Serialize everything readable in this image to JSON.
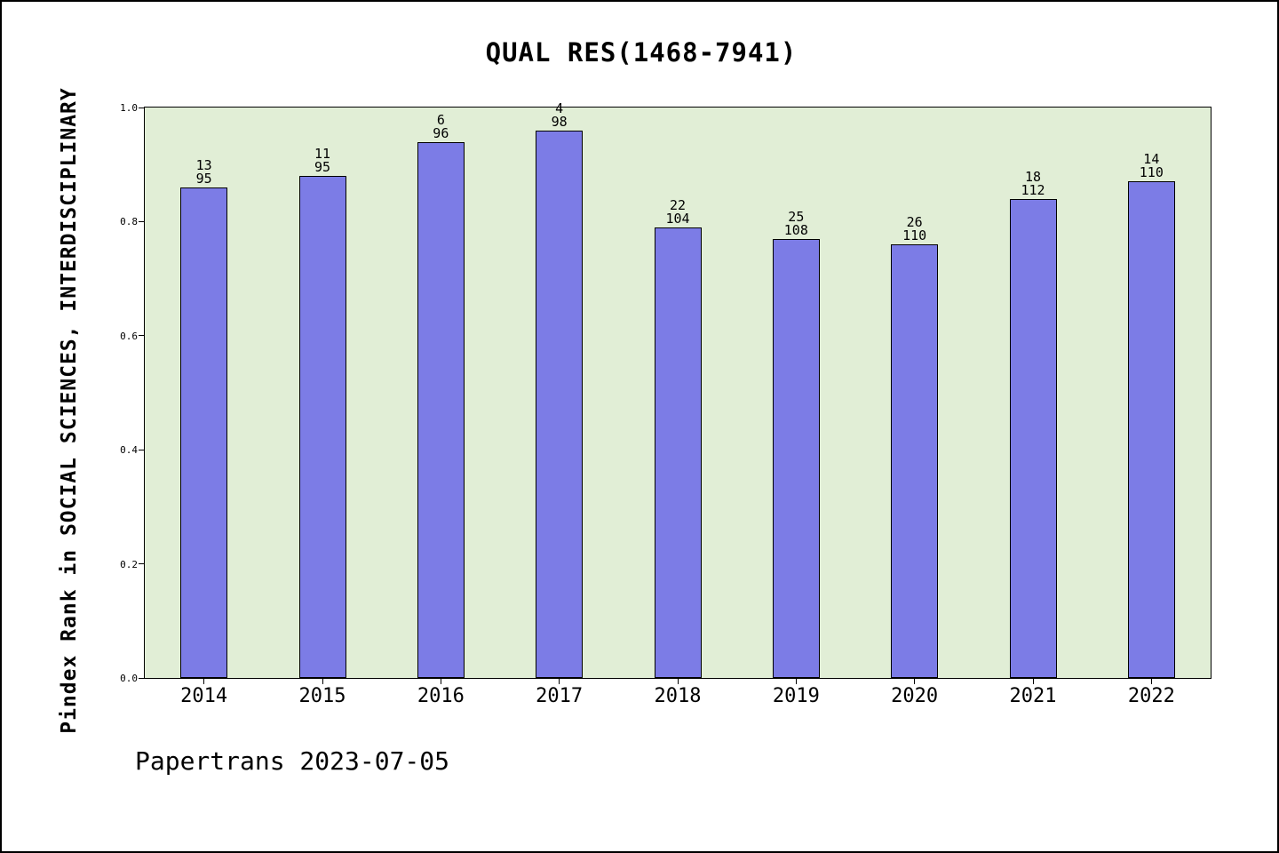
{
  "chart": {
    "title": "QUAL RES(1468-7941)",
    "ylabel": "Pindex Rank in SOCIAL SCIENCES, INTERDISCIPLINARY",
    "footer": "Papertrans 2023-07-05"
  },
  "chart_data": {
    "type": "bar",
    "title": "QUAL RES(1468-7941)",
    "xlabel": "",
    "ylabel": "Pindex Rank in SOCIAL SCIENCES, INTERDISCIPLINARY",
    "categories": [
      "2014",
      "2015",
      "2016",
      "2017",
      "2018",
      "2019",
      "2020",
      "2021",
      "2022"
    ],
    "values": [
      0.86,
      0.88,
      0.94,
      0.96,
      0.79,
      0.77,
      0.76,
      0.84,
      0.87
    ],
    "annotations": [
      {
        "rank": "13",
        "total": "95"
      },
      {
        "rank": "11",
        "total": "95"
      },
      {
        "rank": "6",
        "total": "96"
      },
      {
        "rank": "4",
        "total": "98"
      },
      {
        "rank": "22",
        "total": "104"
      },
      {
        "rank": "25",
        "total": "108"
      },
      {
        "rank": "26",
        "total": "110"
      },
      {
        "rank": "18",
        "total": "112"
      },
      {
        "rank": "14",
        "total": "110"
      }
    ],
    "yticks": [
      "0.0",
      "0.2",
      "0.4",
      "0.6",
      "0.8",
      "1.0"
    ],
    "ylim": [
      0,
      1
    ],
    "grid": false,
    "legend_position": "none",
    "bar_color": "#7c7ce6",
    "bar_edge_color": "#000000",
    "plot_background": "#e1eed6",
    "page_background": "#ffffff"
  }
}
